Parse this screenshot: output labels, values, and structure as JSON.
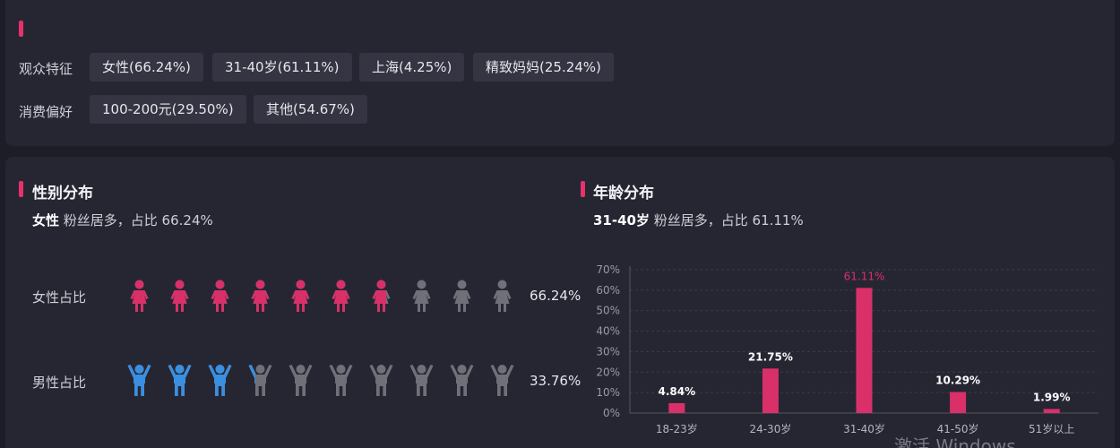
{
  "audience": {
    "label": "观众特征",
    "tags": [
      "女性(66.24%)",
      "31-40岁(61.11%)",
      "上海(4.25%)",
      "精致妈妈(25.24%)"
    ]
  },
  "consumption": {
    "label": "消费偏好",
    "tags": [
      "100-200元(29.50%)",
      "其他(54.67%)"
    ]
  },
  "gender": {
    "title": "性别分布",
    "sub_strong": "女性",
    "sub_text": " 粉丝居多，占比 66.24%",
    "female_label": "女性占比",
    "female_pct": "66.24%",
    "female_value": 66.24,
    "male_label": "男性占比",
    "male_pct": "33.76%",
    "male_value": 33.76,
    "icon_count": 10,
    "colors": {
      "female": "#d9306a",
      "male": "#3a8fe0",
      "inactive": "#707078"
    }
  },
  "age": {
    "title": "年龄分布",
    "sub_strong": "31-40岁",
    "sub_text": " 粉丝居多，占比 61.11%"
  },
  "chart_data": {
    "type": "bar",
    "categories": [
      "18-23岁",
      "24-30岁",
      "31-40岁",
      "41-50岁",
      "51岁以上"
    ],
    "values": [
      4.84,
      21.75,
      61.11,
      10.29,
      1.99
    ],
    "data_labels": [
      "4.84%",
      "21.75%",
      "61.11%",
      "10.29%",
      "1.99%"
    ],
    "highlight_index": 2,
    "ylim": [
      0,
      70
    ],
    "yticks": [
      "0%",
      "10%",
      "20%",
      "30%",
      "40%",
      "50%",
      "60%",
      "70%"
    ],
    "grid": true,
    "bar_color": "#d9306a",
    "highlight_label_color": "#d9306a"
  },
  "watermark": "激活 Windows"
}
